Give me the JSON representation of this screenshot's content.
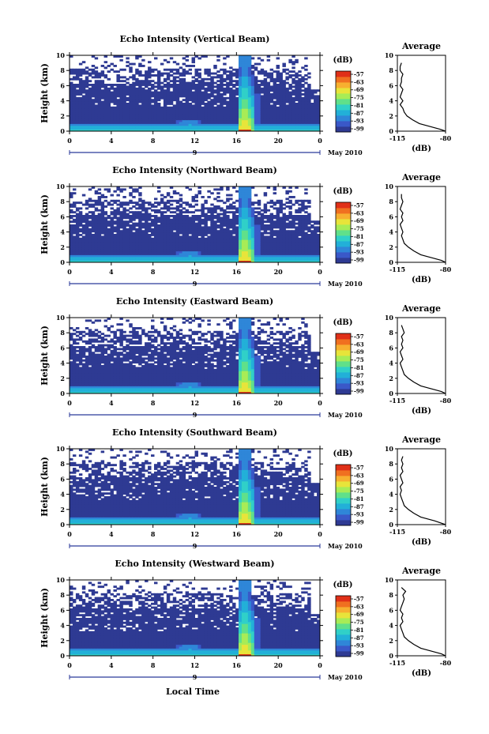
{
  "chart_data": {
    "type": "heatmap",
    "xlabel": "Local Time",
    "date_label": "May 2010",
    "day_marker": "9",
    "colorbar_unit": "(dB)",
    "colorbar_ticks": [
      "-57",
      "-63",
      "-69",
      "-75",
      "-81",
      "-87",
      "-93",
      "-99"
    ],
    "colors": [
      "#2e3a93",
      "#3a58c8",
      "#2f86d8",
      "#22b0d8",
      "#30d0c8",
      "#60e08a",
      "#a8ec56",
      "#e8e43a",
      "#f7b030",
      "#f07020",
      "#e03018"
    ],
    "x_ticks": [
      "0",
      "4",
      "8",
      "12",
      "16",
      "20",
      "0"
    ],
    "xlim": [
      0,
      24
    ],
    "y_ticks": [
      "0",
      "2",
      "4",
      "6",
      "8",
      "10"
    ],
    "ylabel": "Height (km)",
    "ylim": [
      0,
      10
    ],
    "profile": {
      "title": "Average",
      "xlabel": "(dB)",
      "x_ticks": [
        "-115",
        "-80"
      ],
      "xlim": [
        -115,
        -80
      ],
      "y_ticks": [
        "0",
        "2",
        "4",
        "6",
        "8",
        "10"
      ]
    },
    "panels": [
      {
        "title": "Echo Intensity (Vertical Beam)",
        "profile_x": [
          -80,
          -84,
          -89,
          -94,
          -99,
          -104,
          -108,
          -110,
          -111,
          -113,
          -111,
          -113,
          -112,
          -111,
          -113,
          -112,
          -112,
          -111,
          -113,
          -113,
          -112
        ],
        "profile_y": [
          0.0,
          0.25,
          0.5,
          0.75,
          1.0,
          1.5,
          2.0,
          2.5,
          3.0,
          3.5,
          4.0,
          4.5,
          5.0,
          5.5,
          6.0,
          6.5,
          7.0,
          7.5,
          8.0,
          8.5,
          9.0
        ]
      },
      {
        "title": "Echo Intensity (Northward Beam)",
        "profile_x": [
          -80,
          -83,
          -88,
          -93,
          -98,
          -103,
          -107,
          -110,
          -111,
          -112,
          -111,
          -112,
          -113,
          -111,
          -112,
          -111,
          -113,
          -112,
          -111,
          -112,
          -112
        ],
        "profile_y": [
          0.0,
          0.25,
          0.5,
          0.75,
          1.0,
          1.5,
          2.0,
          2.5,
          3.0,
          3.5,
          4.0,
          4.5,
          5.0,
          5.5,
          6.0,
          6.5,
          7.0,
          7.5,
          8.0,
          8.5,
          9.0
        ]
      },
      {
        "title": "Echo Intensity (Eastward Beam)",
        "profile_x": [
          -80,
          -83,
          -88,
          -93,
          -98,
          -103,
          -107,
          -110,
          -111,
          -112,
          -113,
          -111,
          -112,
          -113,
          -111,
          -112,
          -111,
          -112,
          -110,
          -111,
          -112
        ],
        "profile_y": [
          0.0,
          0.25,
          0.5,
          0.75,
          1.0,
          1.5,
          2.0,
          2.5,
          3.0,
          3.5,
          4.0,
          4.5,
          5.0,
          5.5,
          6.0,
          6.5,
          7.0,
          7.5,
          8.0,
          8.5,
          9.0
        ]
      },
      {
        "title": "Echo Intensity (Southward Beam)",
        "profile_x": [
          -80,
          -84,
          -88,
          -93,
          -98,
          -103,
          -107,
          -110,
          -111,
          -112,
          -113,
          -112,
          -113,
          -111,
          -112,
          -113,
          -111,
          -112,
          -111,
          -112,
          -111
        ],
        "profile_y": [
          0.0,
          0.25,
          0.5,
          0.75,
          1.0,
          1.5,
          2.0,
          2.5,
          3.0,
          3.5,
          4.0,
          4.5,
          5.0,
          5.5,
          6.0,
          6.5,
          7.0,
          7.5,
          8.0,
          8.5,
          9.0
        ]
      },
      {
        "title": "Echo Intensity (Westward Beam)",
        "profile_x": [
          -80,
          -83,
          -88,
          -93,
          -98,
          -103,
          -107,
          -110,
          -111,
          -112,
          -113,
          -111,
          -112,
          -111,
          -113,
          -112,
          -111,
          -110,
          -111,
          -109,
          -112
        ],
        "profile_y": [
          0.0,
          0.25,
          0.5,
          0.75,
          1.0,
          1.5,
          2.0,
          2.5,
          3.0,
          3.5,
          4.0,
          4.5,
          5.0,
          5.5,
          6.0,
          6.5,
          7.0,
          7.5,
          8.0,
          8.5,
          9.0
        ]
      }
    ]
  }
}
